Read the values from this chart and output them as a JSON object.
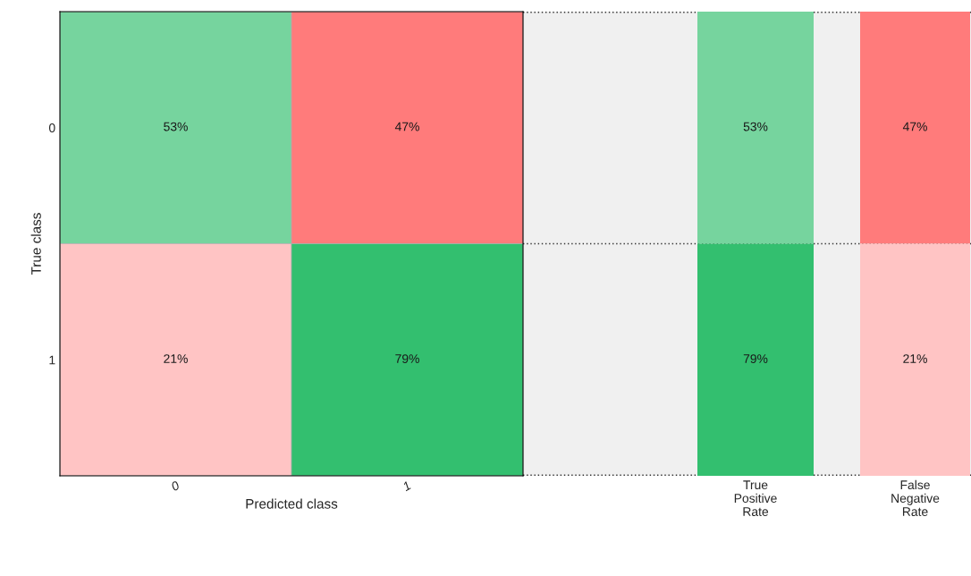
{
  "chart_data": [
    {
      "type": "heatmap",
      "xlabel": "Predicted class",
      "ylabel": "True class",
      "categories": [
        "0",
        "1"
      ],
      "y_categories": [
        "0",
        "1"
      ],
      "cells": [
        [
          53,
          47
        ],
        [
          21,
          79
        ]
      ],
      "cell_labels": [
        [
          "53%",
          "47%"
        ],
        [
          "21%",
          "79%"
        ]
      ],
      "colors": [
        "#33bf6f",
        "#ff7b7b",
        "#ff7b7b",
        "#33bf6f"
      ]
    },
    {
      "type": "heatmap",
      "categories": [
        "True\nPositive\nRate",
        "False\nNegative\nRate"
      ],
      "y_categories": [
        null,
        null
      ],
      "tick_labels": "x",
      "cells": [
        [
          53,
          47
        ],
        [
          79,
          21
        ]
      ],
      "cell_labels": [
        [
          "53%",
          "47%"
        ],
        [
          "79%",
          "21%"
        ]
      ],
      "colors": [
        "#33bf6f",
        "#ff7b7b",
        "#33bf6f",
        "#ff7b7b"
      ]
    }
  ]
}
